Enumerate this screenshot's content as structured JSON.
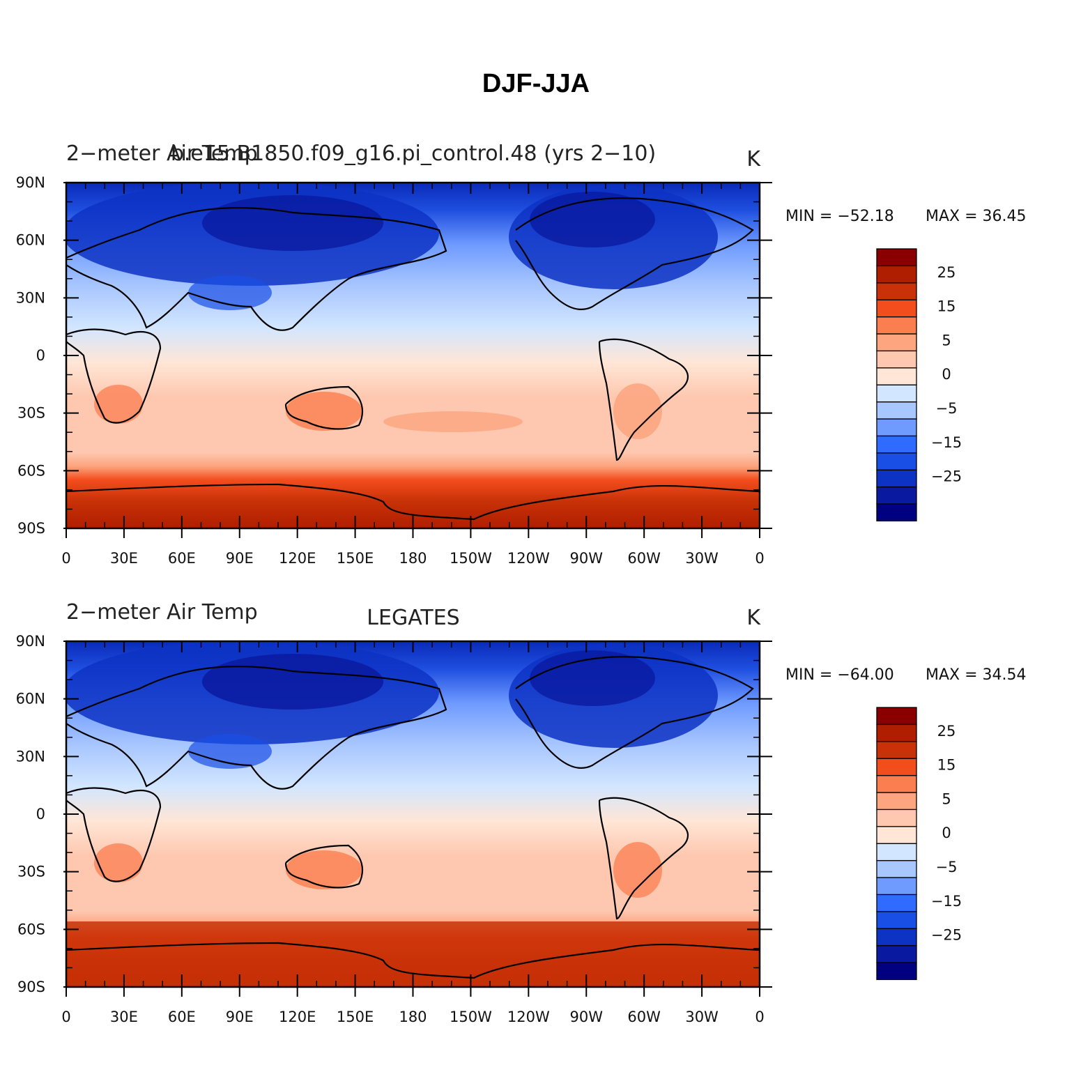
{
  "figure_title": "DJF-JJA",
  "panels": [
    {
      "left_title": "2−meter Air Temp",
      "center_title": "b.e15.B1850.f09_g16.pi_control.48 (yrs 2−10)",
      "units": "K",
      "min_label": "MIN = −52.18",
      "max_label": "MAX =   36.45"
    },
    {
      "left_title": "2−meter Air Temp",
      "center_title": "LEGATES",
      "units": "K",
      "min_label": "MIN = −64.00",
      "max_label": "MAX =   34.54"
    }
  ],
  "lat_labels": [
    "90N",
    "60N",
    "30N",
    "0",
    "30S",
    "60S",
    "90S"
  ],
  "lon_labels": [
    "0",
    "30E",
    "60E",
    "90E",
    "120E",
    "150E",
    "180",
    "150W",
    "120W",
    "90W",
    "60W",
    "30W",
    "0"
  ],
  "colorbar": {
    "colors": [
      "#000080",
      "#0a1aa0",
      "#0d33c4",
      "#1a4fe6",
      "#2f6bff",
      "#6f9bff",
      "#a8c6ff",
      "#d2e6ff",
      "#ffe6d6",
      "#fec8b0",
      "#fca57f",
      "#fb7e50",
      "#f44d1d",
      "#c93208",
      "#b01e00",
      "#8a0000"
    ],
    "labels": [
      "25",
      "15",
      "5",
      "0",
      "−5",
      "−15",
      "−25"
    ]
  },
  "chart_data": {
    "type": "heatmap",
    "variable": "2−meter Air Temp",
    "units": "K",
    "x_range": [
      0,
      360
    ],
    "y_range": [
      -90,
      90
    ],
    "panels": [
      {
        "name": "b.e15.B1850.f09_g16.pi_control.48 (yrs 2−10)",
        "min": -52.18,
        "max": 36.45
      },
      {
        "name": "LEGATES",
        "min": -64.0,
        "max": 34.54
      }
    ],
    "colorbar_levels": [
      -30,
      -25,
      -20,
      -15,
      -10,
      -5,
      -2,
      0,
      2,
      5,
      10,
      15,
      20,
      25,
      30
    ]
  }
}
